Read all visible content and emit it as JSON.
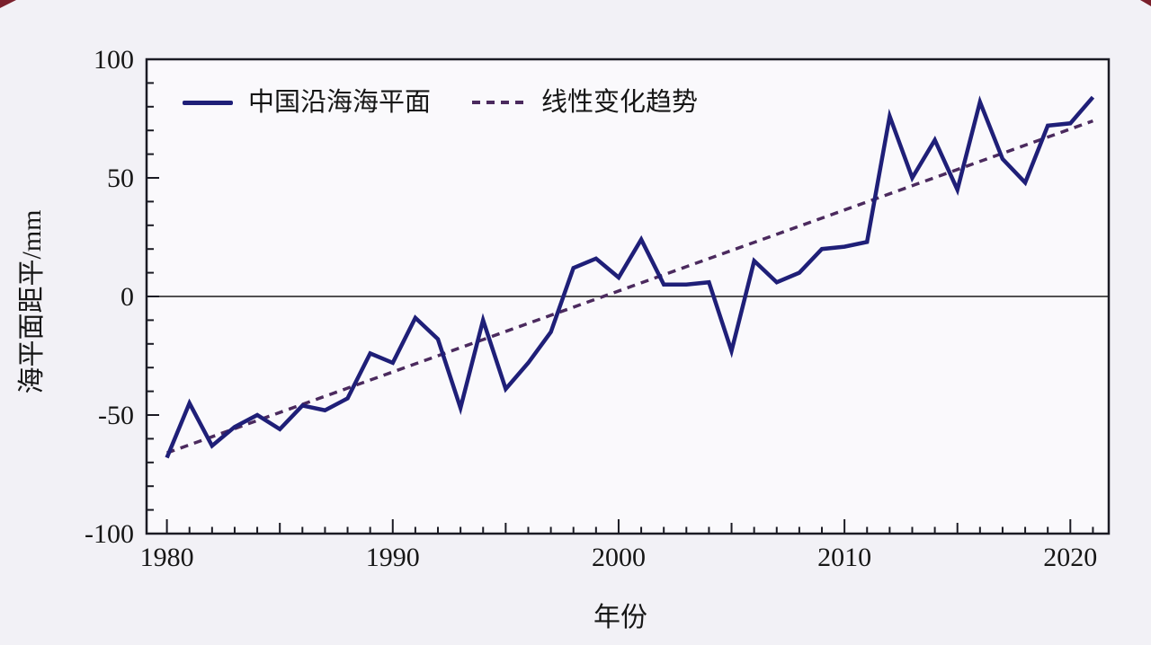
{
  "figure": {
    "background_color": "#f2f1f6",
    "plot_background_color": "#faf9fc",
    "frame_color": "#1b1b24",
    "text_color": "#161616",
    "zero_line_color": "#1a1a1a",
    "corner_mark_color": "#7b202c"
  },
  "legend": {
    "series_label": "中国沿海海平面",
    "trend_label": "线性变化趋势"
  },
  "axes": {
    "x_label": "年份",
    "y_label": "海平面距平/mm"
  },
  "chart_data": {
    "type": "line",
    "title": "",
    "xlabel": "年份",
    "ylabel": "海平面距平/mm",
    "xlim": [
      1979.1,
      2021.7
    ],
    "ylim": [
      -100,
      100
    ],
    "grid": false,
    "legend_position": "top-left-inside",
    "x_tick_labels": [
      1980,
      1990,
      2000,
      2010,
      2020
    ],
    "y_tick_labels": [
      100,
      50,
      0,
      -50,
      -100
    ],
    "x_minor_tick_step_years": 1,
    "y_minor_tick_step_mm": 10,
    "series": [
      {
        "name": "中国沿海海平面",
        "style": "solid",
        "color": "#1f1f78",
        "x": [
          1980,
          1981,
          1982,
          1983,
          1984,
          1985,
          1986,
          1987,
          1988,
          1989,
          1990,
          1991,
          1992,
          1993,
          1994,
          1995,
          1996,
          1997,
          1998,
          1999,
          2000,
          2001,
          2002,
          2003,
          2004,
          2005,
          2006,
          2007,
          2008,
          2009,
          2010,
          2011,
          2012,
          2013,
          2014,
          2015,
          2016,
          2017,
          2018,
          2019,
          2020,
          2021
        ],
        "values": [
          -68,
          -45,
          -63,
          -55,
          -50,
          -56,
          -46,
          -48,
          -43,
          -24,
          -28,
          -9,
          -18,
          -47,
          -10,
          -39,
          -28,
          -15,
          12,
          16,
          8,
          24,
          5,
          5,
          6,
          -23,
          15,
          6,
          10,
          20,
          21,
          23,
          76,
          50,
          66,
          45,
          82,
          58,
          48,
          72,
          73,
          84
        ]
      },
      {
        "name": "线性变化趋势",
        "style": "dashed",
        "color": "#4b2a5e",
        "x": [
          1980,
          2021
        ],
        "values": [
          -66,
          74
        ]
      }
    ]
  }
}
